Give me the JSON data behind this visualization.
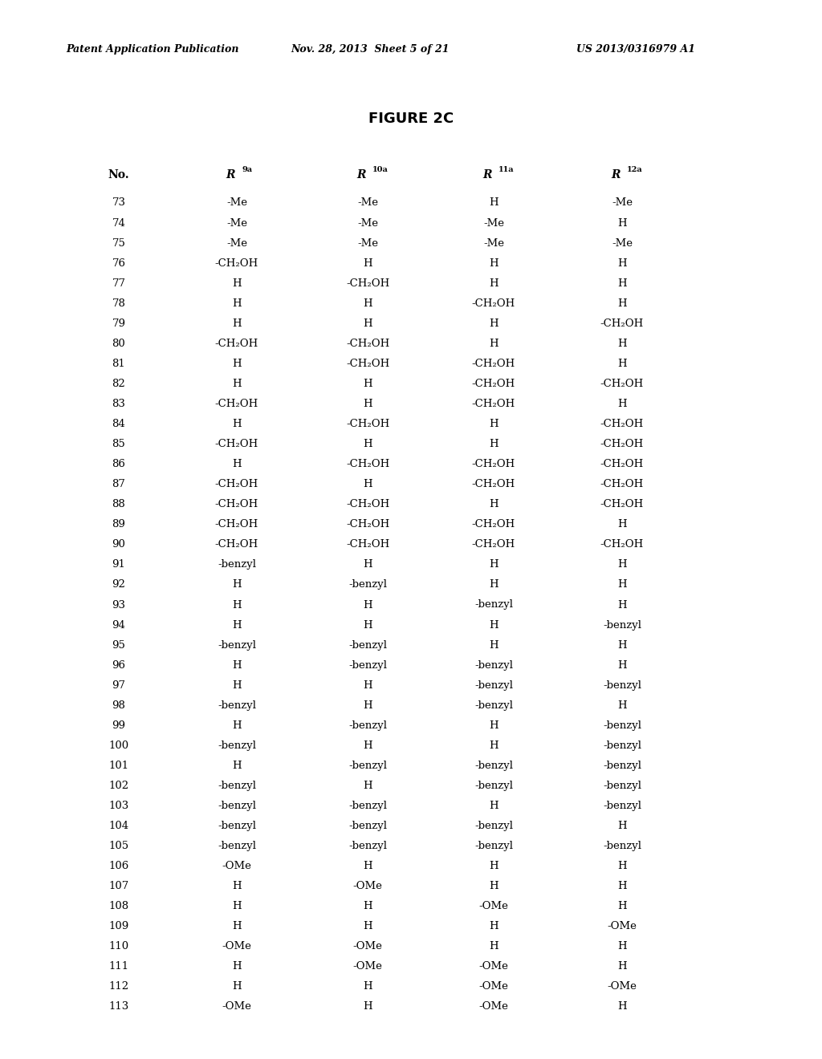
{
  "header_left": "Patent Application Publication",
  "header_mid": "Nov. 28, 2013  Sheet 5 of 21",
  "header_right": "US 2013/0316979 A1",
  "figure_title": "FIGURE 2C",
  "col_superscripts": [
    "9a",
    "10a",
    "11a",
    "12a"
  ],
  "rows": [
    [
      73,
      "-Me",
      "-Me",
      "H",
      "-Me"
    ],
    [
      74,
      "-Me",
      "-Me",
      "-Me",
      "H"
    ],
    [
      75,
      "-Me",
      "-Me",
      "-Me",
      "-Me"
    ],
    [
      76,
      "-CH₂OH",
      "H",
      "H",
      "H"
    ],
    [
      77,
      "H",
      "-CH₂OH",
      "H",
      "H"
    ],
    [
      78,
      "H",
      "H",
      "-CH₂OH",
      "H"
    ],
    [
      79,
      "H",
      "H",
      "H",
      "-CH₂OH"
    ],
    [
      80,
      "-CH₂OH",
      "-CH₂OH",
      "H",
      "H"
    ],
    [
      81,
      "H",
      "-CH₂OH",
      "-CH₂OH",
      "H"
    ],
    [
      82,
      "H",
      "H",
      "-CH₂OH",
      "-CH₂OH"
    ],
    [
      83,
      "-CH₂OH",
      "H",
      "-CH₂OH",
      "H"
    ],
    [
      84,
      "H",
      "-CH₂OH",
      "H",
      "-CH₂OH"
    ],
    [
      85,
      "-CH₂OH",
      "H",
      "H",
      "-CH₂OH"
    ],
    [
      86,
      "H",
      "-CH₂OH",
      "-CH₂OH",
      "-CH₂OH"
    ],
    [
      87,
      "-CH₂OH",
      "H",
      "-CH₂OH",
      "-CH₂OH"
    ],
    [
      88,
      "-CH₂OH",
      "-CH₂OH",
      "H",
      "-CH₂OH"
    ],
    [
      89,
      "-CH₂OH",
      "-CH₂OH",
      "-CH₂OH",
      "H"
    ],
    [
      90,
      "-CH₂OH",
      "-CH₂OH",
      "-CH₂OH",
      "-CH₂OH"
    ],
    [
      91,
      "-benzyl",
      "H",
      "H",
      "H"
    ],
    [
      92,
      "H",
      "-benzyl",
      "H",
      "H"
    ],
    [
      93,
      "H",
      "H",
      "-benzyl",
      "H"
    ],
    [
      94,
      "H",
      "H",
      "H",
      "-benzyl"
    ],
    [
      95,
      "-benzyl",
      "-benzyl",
      "H",
      "H"
    ],
    [
      96,
      "H",
      "-benzyl",
      "-benzyl",
      "H"
    ],
    [
      97,
      "H",
      "H",
      "-benzyl",
      "-benzyl"
    ],
    [
      98,
      "-benzyl",
      "H",
      "-benzyl",
      "H"
    ],
    [
      99,
      "H",
      "-benzyl",
      "H",
      "-benzyl"
    ],
    [
      100,
      "-benzyl",
      "H",
      "H",
      "-benzyl"
    ],
    [
      101,
      "H",
      "-benzyl",
      "-benzyl",
      "-benzyl"
    ],
    [
      102,
      "-benzyl",
      "H",
      "-benzyl",
      "-benzyl"
    ],
    [
      103,
      "-benzyl",
      "-benzyl",
      "H",
      "-benzyl"
    ],
    [
      104,
      "-benzyl",
      "-benzyl",
      "-benzyl",
      "H"
    ],
    [
      105,
      "-benzyl",
      "-benzyl",
      "-benzyl",
      "-benzyl"
    ],
    [
      106,
      "-OMe",
      "H",
      "H",
      "H"
    ],
    [
      107,
      "H",
      "-OMe",
      "H",
      "H"
    ],
    [
      108,
      "H",
      "H",
      "-OMe",
      "H"
    ],
    [
      109,
      "H",
      "H",
      "H",
      "-OMe"
    ],
    [
      110,
      "-OMe",
      "-OMe",
      "H",
      "H"
    ],
    [
      111,
      "H",
      "-OMe",
      "-OMe",
      "H"
    ],
    [
      112,
      "H",
      "H",
      "-OMe",
      "-OMe"
    ],
    [
      113,
      "-OMe",
      "H",
      "-OMe",
      "H"
    ]
  ],
  "background_color": "#ffffff",
  "text_color": "#000000"
}
